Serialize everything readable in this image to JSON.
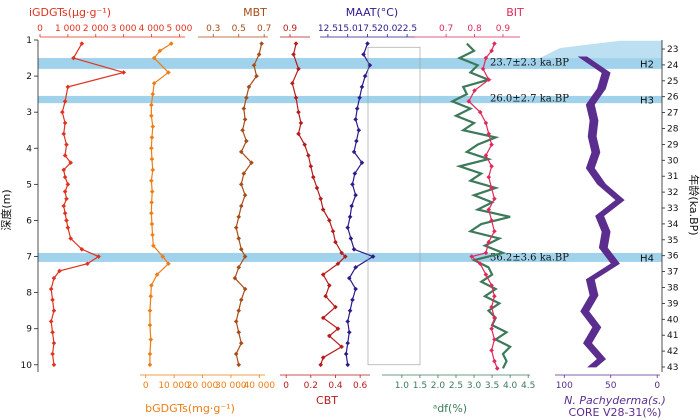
{
  "chart_data": {
    "type": "line",
    "depth_axis": {
      "label": "深度(m)",
      "ticks": [
        1,
        2,
        3,
        4,
        5,
        6,
        7,
        8,
        9,
        10
      ],
      "range": [
        1,
        10.2
      ]
    },
    "age_axis": {
      "label": "年龄(ka.BP)",
      "ticks": [
        23,
        24,
        25,
        26,
        27,
        28,
        29,
        30,
        31,
        32,
        33,
        34,
        35,
        36,
        37,
        38,
        39,
        40,
        41,
        42,
        43
      ]
    },
    "bands": [
      {
        "label": "H2",
        "from": 1.5,
        "to": 1.8
      },
      {
        "label": "H3",
        "from": 2.55,
        "to": 2.75
      },
      {
        "label": "H4",
        "from": 6.9,
        "to": 7.15
      }
    ],
    "age_labels": [
      {
        "text": "23.7±2.3 ka.BP",
        "depth": 1.6
      },
      {
        "text": "26.0±2.7 ka.BP",
        "depth": 2.6
      },
      {
        "text": "36.2±3.6 ka.BP",
        "depth": 7.0
      }
    ],
    "series": [
      {
        "key": "igdgt",
        "color": "#e0321e",
        "top_axis": {
          "label": "iGDGTs(μg·g⁻¹)",
          "range": [
            0,
            5200
          ],
          "ticks": [
            "0",
            "1 000",
            "2 000",
            "3 000",
            "4 000",
            "5 000"
          ]
        },
        "depth": [
          1.1,
          1.5,
          1.9,
          2.3,
          2.7,
          3.0,
          3.3,
          3.6,
          3.9,
          4.2,
          4.4,
          4.6,
          4.8,
          5.0,
          5.2,
          5.4,
          5.6,
          5.8,
          6.0,
          6.2,
          6.5,
          6.8,
          7.0,
          7.2,
          7.4,
          7.6,
          7.9,
          8.2,
          8.5,
          8.8,
          9.1,
          9.4,
          9.7,
          10.0
        ],
        "values": [
          1500,
          1200,
          3000,
          1000,
          900,
          800,
          900,
          850,
          950,
          900,
          1100,
          850,
          900,
          1000,
          900,
          950,
          850,
          900,
          950,
          1000,
          1100,
          1500,
          2100,
          1700,
          700,
          500,
          400,
          450,
          500,
          400,
          450,
          500,
          450,
          500
        ]
      },
      {
        "key": "bgdgt",
        "color": "#ee7d14",
        "bottom_axis": {
          "label": "bGDGTs(mg·g⁻¹)",
          "range": [
            -2000,
            42000
          ],
          "ticks": [
            "0",
            "10 000",
            "20 000",
            "30 000",
            "40 000"
          ]
        },
        "depth": [
          1.1,
          1.3,
          1.5,
          1.9,
          2.2,
          2.5,
          2.8,
          3.1,
          3.4,
          3.7,
          4.0,
          4.3,
          4.6,
          4.9,
          5.2,
          5.5,
          5.8,
          6.1,
          6.4,
          6.7,
          7.0,
          7.2,
          7.5,
          7.8,
          8.1,
          8.5,
          8.9,
          9.3,
          9.7,
          10.0
        ],
        "values": [
          9000,
          5000,
          3000,
          8000,
          3000,
          2500,
          2000,
          2000,
          2500,
          2200,
          2000,
          2200,
          2500,
          2000,
          2300,
          2100,
          2000,
          2200,
          2400,
          2700,
          6000,
          8000,
          4000,
          2000,
          1800,
          1500,
          1500,
          1800,
          1500,
          1500
        ]
      },
      {
        "key": "mbt",
        "color": "#a84d19",
        "top_axis": {
          "label": "MBT",
          "range": [
            0.18,
            0.73
          ],
          "ticks": [
            "0.3",
            "0.5",
            "0.7"
          ]
        },
        "depth": [
          1.1,
          1.4,
          1.7,
          2.0,
          2.3,
          2.6,
          2.9,
          3.2,
          3.5,
          3.8,
          4.1,
          4.4,
          4.7,
          5.0,
          5.3,
          5.6,
          5.9,
          6.2,
          6.5,
          6.8,
          7.0,
          7.3,
          7.6,
          7.9,
          8.2,
          8.5,
          8.8,
          9.1,
          9.4,
          9.7,
          10.0
        ],
        "values": [
          0.68,
          0.66,
          0.62,
          0.64,
          0.58,
          0.56,
          0.54,
          0.55,
          0.53,
          0.56,
          0.52,
          0.6,
          0.54,
          0.52,
          0.55,
          0.52,
          0.5,
          0.48,
          0.5,
          0.52,
          0.55,
          0.5,
          0.47,
          0.55,
          0.52,
          0.5,
          0.48,
          0.5,
          0.52,
          0.48,
          0.5
        ]
      },
      {
        "key": "cbt",
        "color": "#b71c1c",
        "top_axis": {
          "label": "",
          "range": [
            0.82,
            1.06
          ],
          "ticks": [
            "0.9"
          ]
        },
        "bottom_axis": {
          "label": "CBT",
          "range": [
            -0.05,
            0.68
          ],
          "ticks": [
            "0",
            "0.2",
            "0.4",
            "0.6"
          ]
        },
        "depth": [
          1.1,
          1.4,
          1.8,
          2.2,
          2.6,
          3.0,
          3.3,
          3.6,
          3.9,
          4.2,
          4.5,
          4.8,
          5.1,
          5.4,
          5.7,
          6.0,
          6.3,
          6.6,
          6.9,
          7.0,
          7.2,
          7.5,
          7.8,
          8.1,
          8.4,
          8.7,
          9.0,
          9.2,
          9.5,
          9.8,
          10.0
        ],
        "values": [
          0.08,
          0.06,
          0.1,
          0.05,
          0.08,
          0.1,
          0.12,
          0.1,
          0.15,
          0.18,
          0.2,
          0.22,
          0.25,
          0.28,
          0.3,
          0.35,
          0.38,
          0.4,
          0.45,
          0.48,
          0.42,
          0.3,
          0.35,
          0.32,
          0.4,
          0.3,
          0.42,
          0.35,
          0.45,
          0.3,
          0.28
        ]
      },
      {
        "key": "maat",
        "color": "#2e1a8c",
        "top_axis": {
          "label": "MAAT(°C)",
          "range": [
            11.5,
            23.5
          ],
          "ticks": [
            "12.5",
            "15.0",
            "17.5",
            "20.0",
            "22.5"
          ]
        },
        "depth": [
          1.1,
          1.4,
          1.7,
          2.0,
          2.3,
          2.6,
          2.9,
          3.2,
          3.5,
          3.8,
          4.1,
          4.4,
          4.7,
          5.0,
          5.3,
          5.6,
          5.9,
          6.2,
          6.5,
          6.8,
          7.0,
          7.3,
          7.6,
          7.9,
          8.2,
          8.5,
          8.8,
          9.1,
          9.4,
          9.7,
          10.0
        ],
        "values": [
          17.5,
          17.0,
          17.8,
          17.2,
          16.8,
          16.5,
          16.2,
          16.0,
          16.4,
          16.1,
          15.8,
          16.8,
          15.9,
          15.6,
          16.0,
          15.5,
          15.3,
          15.0,
          15.4,
          15.8,
          18.2,
          16.0,
          15.2,
          16.0,
          15.6,
          15.3,
          15.0,
          15.2,
          15.0,
          14.8,
          15.0
        ]
      },
      {
        "key": "df",
        "color": "#3d7a5a",
        "bottom_axis": {
          "label": "ᵃdf(%)",
          "range": [
            0.45,
            4.55
          ],
          "ticks": [
            "1.0",
            "1.5",
            "2.0",
            "2.5",
            "3.0",
            "3.5",
            "4.0",
            "4.5"
          ]
        },
        "depth": [
          1.1,
          1.3,
          1.5,
          1.7,
          1.9,
          2.1,
          2.3,
          2.5,
          2.7,
          2.9,
          3.1,
          3.3,
          3.5,
          3.7,
          3.9,
          4.1,
          4.3,
          4.5,
          4.7,
          4.9,
          5.1,
          5.3,
          5.5,
          5.7,
          5.9,
          6.1,
          6.3,
          6.5,
          6.7,
          6.9,
          7.1,
          7.3,
          7.5,
          7.7,
          7.9,
          8.1,
          8.3,
          8.5,
          8.7,
          8.9,
          9.1,
          9.3,
          9.5,
          9.7,
          9.9,
          10.1
        ],
        "values": [
          2.8,
          3.0,
          2.6,
          3.1,
          2.9,
          3.4,
          2.7,
          2.8,
          2.4,
          2.9,
          2.5,
          3.0,
          2.7,
          3.6,
          3.1,
          2.8,
          3.4,
          2.6,
          3.2,
          2.9,
          3.6,
          3.0,
          3.5,
          3.1,
          4.0,
          3.2,
          2.9,
          3.7,
          3.3,
          3.8,
          3.0,
          3.4,
          3.5,
          3.2,
          3.6,
          3.3,
          3.7,
          3.4,
          3.6,
          3.5,
          3.9,
          3.6,
          4.0,
          3.8,
          3.9,
          3.8
        ]
      },
      {
        "key": "bit",
        "color": "#e0295a",
        "top_axis": {
          "label": "BIT",
          "range": [
            0.58,
            0.96
          ],
          "ticks": [
            "0.7",
            "0.8",
            "0.9"
          ]
        },
        "depth": [
          1.1,
          1.3,
          1.5,
          1.8,
          2.1,
          2.4,
          2.7,
          3.0,
          3.3,
          3.6,
          3.9,
          4.2,
          4.5,
          4.8,
          5.1,
          5.4,
          5.7,
          6.0,
          6.3,
          6.6,
          6.9,
          7.0,
          7.2,
          7.5,
          7.8,
          8.1,
          8.4,
          8.7,
          9.0,
          9.3,
          9.6,
          9.9,
          10.1
        ],
        "values": [
          0.87,
          0.86,
          0.84,
          0.83,
          0.85,
          0.8,
          0.78,
          0.82,
          0.84,
          0.85,
          0.86,
          0.84,
          0.86,
          0.85,
          0.86,
          0.87,
          0.85,
          0.86,
          0.87,
          0.85,
          0.84,
          0.79,
          0.82,
          0.84,
          0.86,
          0.87,
          0.86,
          0.87,
          0.86,
          0.87,
          0.86,
          0.87,
          0.88
        ]
      },
      {
        "key": "npach",
        "color": "#5b2d8e",
        "bottom_axis": {
          "label": "N. Pachyderma(s.)",
          "sublabel": "CORE V28-31(%)",
          "range": [
            110,
            -3
          ],
          "ticks": [
            "100",
            "50",
            "0"
          ]
        },
        "age": [
          23.5,
          24.5,
          25.5,
          26.5,
          27.5,
          28.5,
          29.5,
          30.5,
          31.5,
          32.5,
          33.5,
          34.5,
          35.5,
          36.5,
          37.5,
          38.5,
          39.5,
          40.5,
          41.5,
          42.5,
          43.0
        ],
        "values": [
          80,
          55,
          60,
          72,
          68,
          70,
          66,
          72,
          60,
          40,
          62,
          55,
          58,
          45,
          72,
          68,
          78,
          65,
          75,
          60,
          70
        ]
      }
    ]
  }
}
